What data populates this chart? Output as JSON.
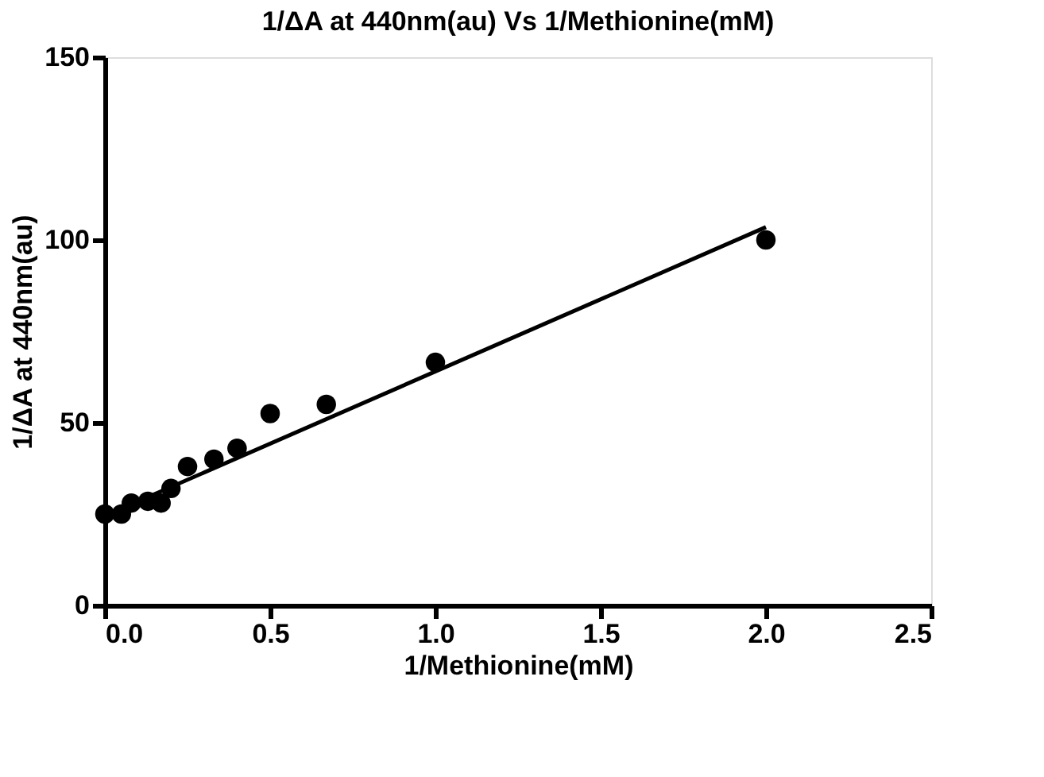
{
  "chart_data": {
    "type": "scatter",
    "title": "1/ΔA at 440nm(au) Vs 1/Methionine(mM)",
    "xlabel": "1/Methionine(mM)",
    "ylabel": "1/ΔA at 440nm(au)",
    "xlim": [
      0,
      2.5
    ],
    "xticks": [
      {
        "value": 0,
        "label": "0.0"
      },
      0.5,
      {
        "value": 1,
        "label": "1.0"
      },
      1.5,
      {
        "value": 2,
        "label": "2.0"
      },
      2.5
    ],
    "ylim": [
      0,
      150
    ],
    "yticks": [
      0,
      50,
      100,
      150
    ],
    "grid": false,
    "marker": "circle",
    "series": [
      {
        "color": "#000000",
        "x": [
          0,
          0.05,
          0.08,
          0.13,
          0.17,
          0.2,
          0.25,
          0.33,
          0.4,
          0.5,
          0.67,
          1.0,
          2.0
        ],
        "values": [
          25,
          25,
          28,
          28.5,
          28,
          32,
          38,
          40,
          43,
          52.5,
          55,
          66.5,
          100
        ]
      },
      {
        "type": "line",
        "color": "#000000",
        "x": [
          0,
          2.0
        ],
        "values": [
          24.5,
          103.5
        ],
        "marker": "none",
        "line_style": "solid"
      }
    ]
  }
}
